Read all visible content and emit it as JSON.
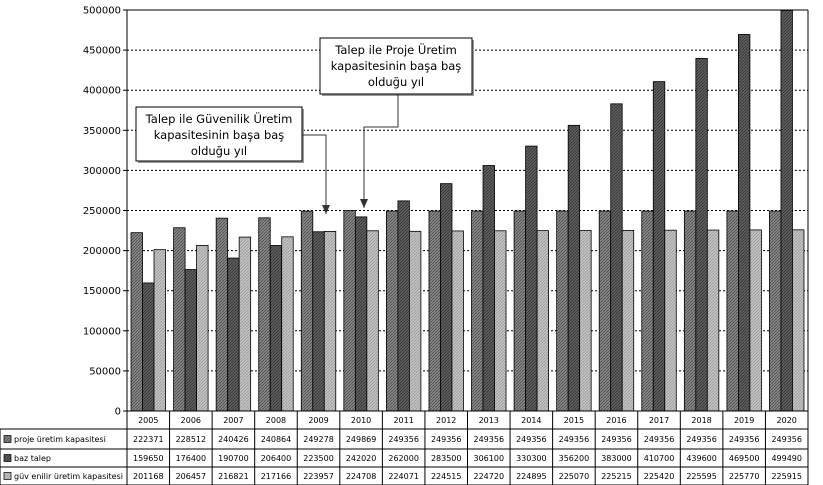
{
  "chart_data": {
    "type": "bar",
    "categories": [
      "2005",
      "2006",
      "2007",
      "2008",
      "2009",
      "2010",
      "2011",
      "2012",
      "2013",
      "2014",
      "2015",
      "2016",
      "2017",
      "2018",
      "2019",
      "2020"
    ],
    "ylim": [
      0,
      500000
    ],
    "yticks": [
      "0",
      "50000",
      "100000",
      "150000",
      "200000",
      "250000",
      "300000",
      "350000",
      "400000",
      "450000",
      "500000"
    ],
    "grid": true,
    "legend": "data-table-left",
    "series": [
      {
        "name": "proje üretim kapasitesi",
        "color": "#7a7a7a",
        "values": [
          222371,
          228512,
          240426,
          240864,
          249278,
          249869,
          249356,
          249356,
          249356,
          249356,
          249356,
          249356,
          249356,
          249356,
          249356,
          249356
        ],
        "display": [
          "222371",
          "228512",
          "240426",
          "240864",
          "249278",
          "249869",
          "249356",
          "249356",
          "249356",
          "249356",
          "249356",
          "249356",
          "249356",
          "249356",
          "249356",
          "249356"
        ]
      },
      {
        "name": "baz talep",
        "color": "#555555",
        "values": [
          159650,
          176400,
          190700,
          206400,
          223500,
          242020,
          262000,
          283500,
          306100,
          330300,
          356200,
          383000,
          410700,
          439600,
          469500,
          499490
        ],
        "display": [
          "159650",
          "176400",
          "190700",
          "206400",
          "223500",
          "242020",
          "262000",
          "283500",
          "306100",
          "330300",
          "356200",
          "383000",
          "410700",
          "439600",
          "469500",
          "499490"
        ]
      },
      {
        "name": "güv enilir üretim kapasitesi",
        "color": "#b8b8b8",
        "values": [
          201168,
          206457,
          216821,
          217166,
          223957,
          224708,
          224071,
          224515,
          224720,
          224895,
          225070,
          225215,
          225420,
          225595,
          225770,
          225915
        ],
        "display": [
          "201168",
          "206457",
          "216821",
          "217166",
          "223957",
          "224708",
          "224071",
          "224515",
          "224720",
          "224895",
          "225070",
          "225215",
          "225420",
          "225595",
          "225770",
          "225915"
        ]
      }
    ],
    "annotations": [
      {
        "lines": [
          "Talep ile Güvenilik Üretim",
          "kapasitesinin başa baş",
          "olduğu yıl"
        ],
        "target_category": "2009"
      },
      {
        "lines": [
          "Talep ile Proje Üretim",
          "kapasitesinin başa baş",
          "olduğu yıl"
        ],
        "target_category": "2010"
      }
    ]
  }
}
